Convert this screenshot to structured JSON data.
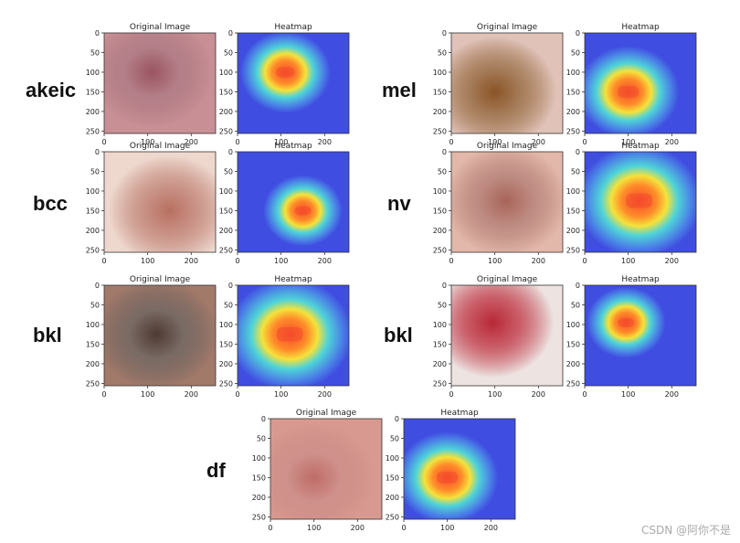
{
  "figure_texts": {
    "original_title": "Original Image",
    "heatmap_title": "Heatmap"
  },
  "watermark": "CSDN @阿你不是",
  "colors": {
    "heat_low": "#3f4de0",
    "heat_mid": "#4fd4d8",
    "heat_high": "#f44b2c"
  },
  "chart_data": {
    "type": "heatmap",
    "xticks": [
      0,
      100,
      200
    ],
    "yticks": [
      0,
      50,
      100,
      150,
      200,
      250
    ],
    "xlim": [
      0,
      256
    ],
    "ylim": [
      256,
      0
    ],
    "panels": [
      {
        "label": "akeic",
        "skin": "#c89095",
        "lesion": "#9a5460",
        "hotspot": [
          110,
          100
        ],
        "spread": 40
      },
      {
        "label": "mel",
        "skin": "#e0c2b8",
        "lesion": "#8a5426",
        "hotspot": [
          100,
          150
        ],
        "spread": 45
      },
      {
        "label": "bcc",
        "skin": "#eed8ce",
        "lesion": "#b87060",
        "hotspot": [
          150,
          150
        ],
        "spread": 35
      },
      {
        "label": "nv",
        "skin": "#e2b8aa",
        "lesion": "#a86458",
        "hotspot": [
          125,
          125
        ],
        "spread": 55
      },
      {
        "label": "bkl",
        "skin": "#a27a6a",
        "lesion": "#4e3a32",
        "hotspot": [
          120,
          125
        ],
        "spread": 55
      },
      {
        "label": "bkl",
        "skin": "#ede4e2",
        "lesion": "#b82836",
        "hotspot": [
          95,
          95
        ],
        "spread": 35
      },
      {
        "label": "df",
        "skin": "#d89a90",
        "lesion": "#bf6c66",
        "hotspot": [
          100,
          150
        ],
        "spread": 45
      }
    ]
  }
}
